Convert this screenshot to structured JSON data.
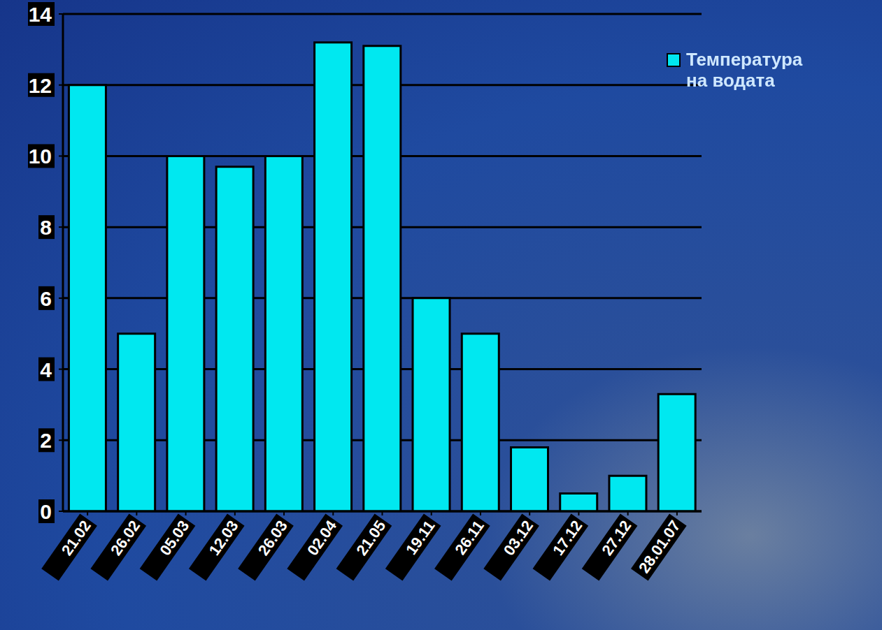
{
  "chart_data": {
    "type": "bar",
    "categories": [
      "21.02",
      "26.02",
      "05.03",
      "12.03",
      "26.03",
      "02.04",
      "21.05",
      "19.11",
      "26.11",
      "03.12",
      "17.12",
      "27.12",
      "28.01.07"
    ],
    "series": [
      {
        "name": "Температура на водата",
        "color": "#00e8f0",
        "values": [
          12,
          5,
          10,
          9.7,
          10,
          13.2,
          13.1,
          6,
          5,
          1.8,
          0.5,
          1,
          3.3
        ]
      }
    ],
    "ylim": [
      0,
      14
    ],
    "yticks": [
      0,
      2,
      4,
      6,
      8,
      10,
      12,
      14
    ],
    "grid": true,
    "legend": "upper right"
  }
}
